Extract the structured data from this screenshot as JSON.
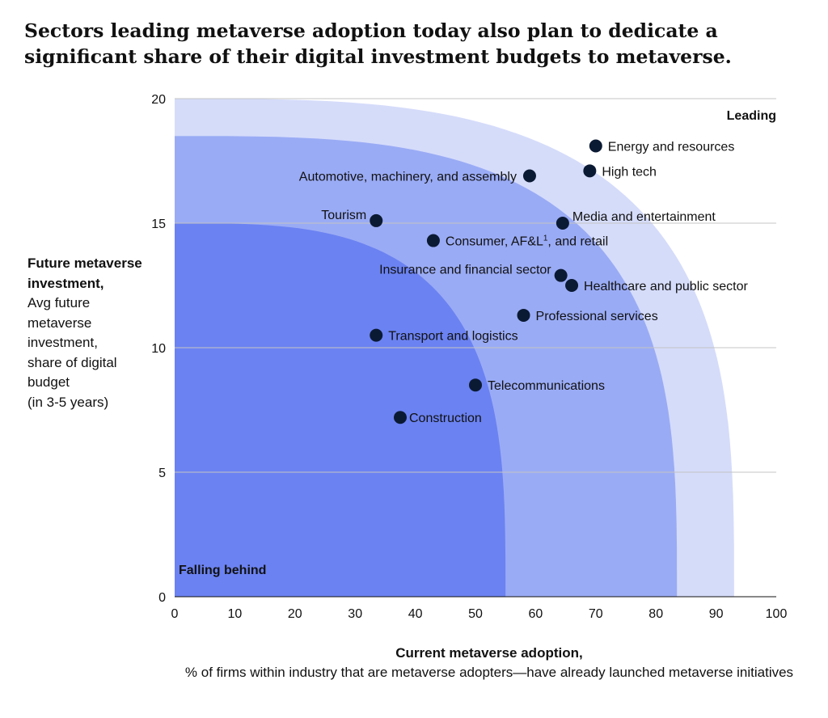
{
  "chart_data": {
    "type": "scatter",
    "title": "Sectors leading metaverse adoption today also plan to dedicate a significant share of their digital investment budgets to metaverse.",
    "xlabel": "Current metaverse adoption,",
    "xlabel_detail": "% of firms within industry that are metaverse adopters—have already launched metaverse initiatives",
    "ylabel": "Future metaverse investment,",
    "ylabel_detail": [
      "Avg future",
      "metaverse",
      "investment,",
      "share of digital",
      "budget",
      "(in 3-5 years)"
    ],
    "xlim": [
      0,
      100
    ],
    "ylim": [
      0,
      20
    ],
    "xticks": [
      0,
      10,
      20,
      30,
      40,
      50,
      60,
      70,
      80,
      90,
      100
    ],
    "yticks": [
      0,
      5,
      10,
      15,
      20
    ],
    "grid": "horizontal",
    "zone_labels": {
      "top": "Leading",
      "bottom": "Falling behind"
    },
    "zones": [
      {
        "x_max": 93,
        "y_max": 20,
        "color": "#d5dcfa"
      },
      {
        "x_max": 83.5,
        "y_max": 18.5,
        "color": "#9aabf5"
      },
      {
        "x_max": 55,
        "y_max": 15,
        "color": "#6b82f2"
      }
    ],
    "point_color": "#0b1a33",
    "points": [
      {
        "label": "Energy and resources",
        "x": 70,
        "y": 18.1,
        "side": "right"
      },
      {
        "label": "High tech",
        "x": 69,
        "y": 17.1,
        "side": "right"
      },
      {
        "label": "Automotive, machinery, and assembly",
        "x": 59,
        "y": 16.9,
        "side": "left"
      },
      {
        "label": "Media and entertainment",
        "x": 64.5,
        "y": 15.0,
        "side": "right-up"
      },
      {
        "label": "Tourism",
        "x": 33.5,
        "y": 15.1,
        "side": "left-up"
      },
      {
        "label": "Consumer, AF&L",
        "label_sup": "1",
        "label_tail": ", and retail",
        "x": 43,
        "y": 14.3,
        "side": "right"
      },
      {
        "label": "Insurance and financial sector",
        "x": 64.2,
        "y": 12.9,
        "side": "left-up"
      },
      {
        "label": "Healthcare and public sector",
        "x": 66,
        "y": 12.5,
        "side": "right"
      },
      {
        "label": "Professional services",
        "x": 58,
        "y": 11.3,
        "side": "right"
      },
      {
        "label": "Transport and logistics",
        "x": 33.5,
        "y": 10.5,
        "side": "right"
      },
      {
        "label": "Telecommunications",
        "x": 50,
        "y": 8.5,
        "side": "right"
      },
      {
        "label": "Construction",
        "x": 37.5,
        "y": 7.2,
        "side": "right-tight"
      }
    ]
  }
}
